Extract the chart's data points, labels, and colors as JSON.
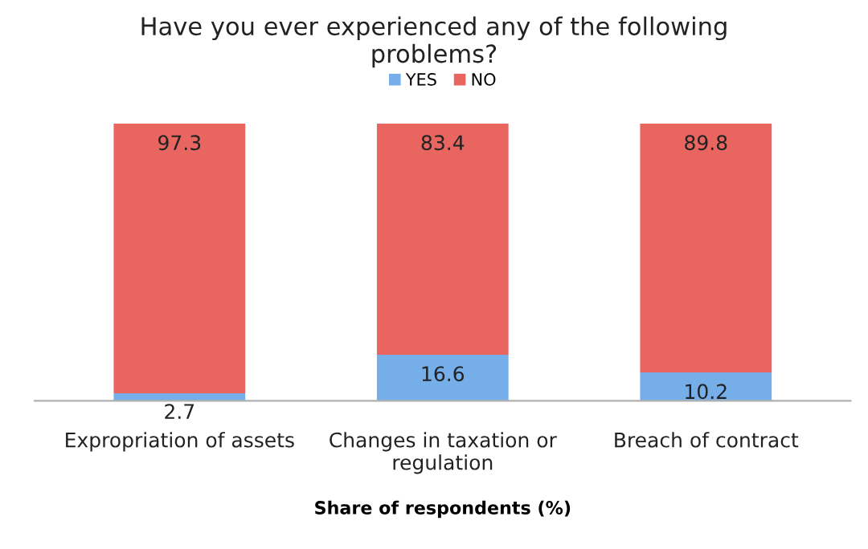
{
  "chart_data": {
    "type": "bar",
    "stacked": true,
    "title": "Have you ever experienced any of the following problems?",
    "xlabel": "Share of respondents (%)",
    "categories": [
      "Expropriation of assets",
      "Changes in taxation or regulation",
      "Breach of contract"
    ],
    "series": [
      {
        "name": "YES",
        "color": "#75aee8",
        "values": [
          2.7,
          16.6,
          10.2
        ]
      },
      {
        "name": "NO",
        "color": "#e86560",
        "values": [
          97.3,
          83.4,
          89.8
        ]
      }
    ],
    "data_labels": true,
    "legend": "top"
  }
}
